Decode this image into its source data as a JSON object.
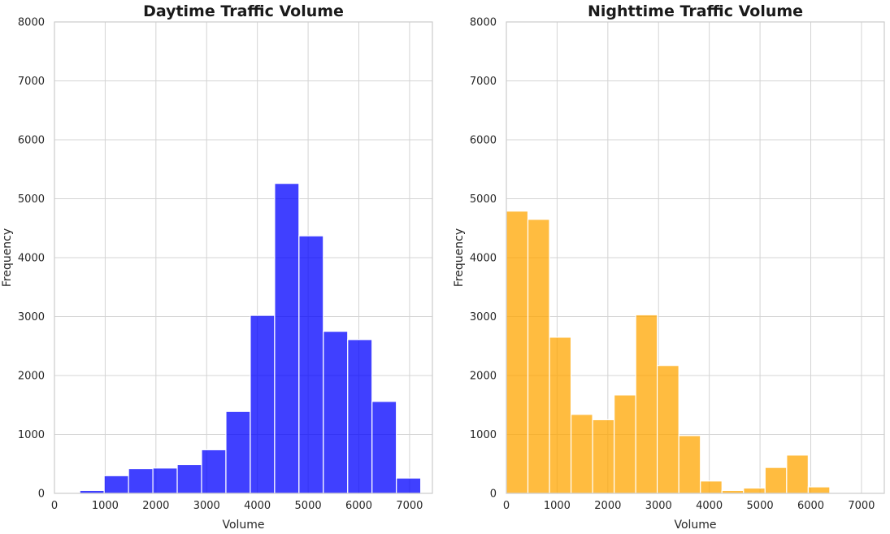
{
  "chart_data": [
    {
      "type": "bar",
      "title": "Daytime Traffic Volume",
      "xlabel": "Volume",
      "ylabel": "Frequency",
      "color": "#0000ff",
      "opacity": 0.75,
      "xlim": [
        0,
        7450
      ],
      "ylim": [
        0,
        8000
      ],
      "grid": true,
      "xticks": [
        "0",
        "1000",
        "2000",
        "3000",
        "4000",
        "5000",
        "6000",
        "7000"
      ],
      "yticks": [
        "0",
        "1000",
        "2000",
        "3000",
        "4000",
        "5000",
        "6000",
        "7000",
        "8000"
      ],
      "bins": [
        {
          "x0": 500,
          "x1": 980,
          "value": 50
        },
        {
          "x0": 980,
          "x1": 1460,
          "value": 300
        },
        {
          "x0": 1460,
          "x1": 1940,
          "value": 420
        },
        {
          "x0": 1940,
          "x1": 2420,
          "value": 430
        },
        {
          "x0": 2420,
          "x1": 2900,
          "value": 490
        },
        {
          "x0": 2900,
          "x1": 3380,
          "value": 740
        },
        {
          "x0": 3380,
          "x1": 3860,
          "value": 1390
        },
        {
          "x0": 3860,
          "x1": 4340,
          "value": 3020
        },
        {
          "x0": 4340,
          "x1": 4820,
          "value": 5260
        },
        {
          "x0": 4820,
          "x1": 5300,
          "value": 4370
        },
        {
          "x0": 5300,
          "x1": 5780,
          "value": 2750
        },
        {
          "x0": 5780,
          "x1": 6260,
          "value": 2610
        },
        {
          "x0": 6260,
          "x1": 6740,
          "value": 1560
        },
        {
          "x0": 6740,
          "x1": 7220,
          "value": 260
        }
      ]
    },
    {
      "type": "bar",
      "title": "Nighttime Traffic Volume",
      "xlabel": "Volume",
      "ylabel": "Frequency",
      "color": "#ffa500",
      "opacity": 0.75,
      "xlim": [
        0,
        7450
      ],
      "ylim": [
        0,
        8000
      ],
      "grid": true,
      "xticks": [
        "0",
        "1000",
        "2000",
        "3000",
        "4000",
        "5000",
        "6000",
        "7000"
      ],
      "yticks": [
        "0",
        "1000",
        "2000",
        "3000",
        "4000",
        "5000",
        "6000",
        "7000",
        "8000"
      ],
      "bins": [
        {
          "x0": 0,
          "x1": 425,
          "value": 4790
        },
        {
          "x0": 425,
          "x1": 850,
          "value": 4650
        },
        {
          "x0": 850,
          "x1": 1275,
          "value": 2650
        },
        {
          "x0": 1275,
          "x1": 1700,
          "value": 1340
        },
        {
          "x0": 1700,
          "x1": 2125,
          "value": 1250
        },
        {
          "x0": 2125,
          "x1": 2550,
          "value": 1670
        },
        {
          "x0": 2550,
          "x1": 2975,
          "value": 3030
        },
        {
          "x0": 2975,
          "x1": 3400,
          "value": 2170
        },
        {
          "x0": 3400,
          "x1": 3825,
          "value": 980
        },
        {
          "x0": 3825,
          "x1": 4250,
          "value": 210
        },
        {
          "x0": 4250,
          "x1": 4675,
          "value": 50
        },
        {
          "x0": 4675,
          "x1": 5100,
          "value": 90
        },
        {
          "x0": 5100,
          "x1": 5525,
          "value": 440
        },
        {
          "x0": 5525,
          "x1": 5950,
          "value": 650
        },
        {
          "x0": 5950,
          "x1": 6375,
          "value": 110
        }
      ]
    }
  ]
}
